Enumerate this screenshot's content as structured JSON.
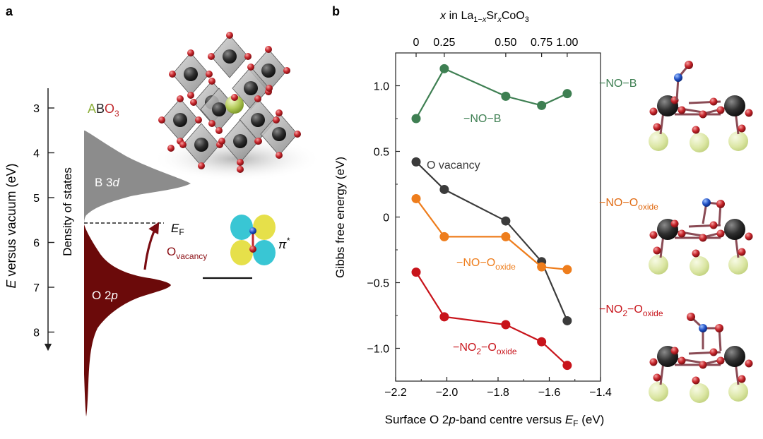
{
  "panel_a": {
    "label": "a",
    "axis_label": "E versus vacuum (eV)",
    "axis_label_italic": "E",
    "axis_label_rest": " versus vacuum (eV)",
    "dos_label": "Density of states",
    "abo3": {
      "a": "A",
      "b": "B",
      "o": "O",
      "sub": "3"
    },
    "b3d": "B 3",
    "b3d_italic": "d",
    "o2p": "O 2",
    "o2p_italic": "p",
    "ef_main": "E",
    "ef_sub": "F",
    "ovac_main": "O",
    "ovac_sub": "vacancy",
    "pi_star": "π",
    "pi_star_sup": "*",
    "ticks": [
      3,
      4,
      5,
      6,
      7,
      8
    ],
    "fermi_level_eV": 5.57,
    "colors": {
      "b3d_band": "#8c8c8c",
      "o2p_band": "#6b0a0a",
      "a_site": "#8db03b",
      "o_site": "#c0282c",
      "arrow": "#7a0c12"
    }
  },
  "panel_b": {
    "label": "b",
    "top_axis_title": {
      "x_italic": "x",
      "in": " in La",
      "sub1": "1−",
      "sub1_x": "x",
      "sr": "Sr",
      "sub2_x": "x",
      "rest": "CoO",
      "sub3": "3"
    },
    "top_ticks": [
      "0",
      "0.25",
      "0.50",
      "0.75",
      "1.00"
    ],
    "ylabel": "Gibbs free energy (eV)",
    "xlabel": {
      "text": "Surface O 2",
      "italic_p": "p",
      "mid": "-band centre versus ",
      "italic_e": "E",
      "sub": "F",
      "tail": " (eV)"
    },
    "xtick_labels": [
      "−2.2",
      "−2.0",
      "−1.8",
      "−1.6",
      "−1.4"
    ],
    "ytick_labels": [
      "−1.0",
      "−0.5",
      "0",
      "0.5",
      "1.0"
    ],
    "series_labels": {
      "nob": "−NO−B",
      "ovac": "O vacancy",
      "nooxide_main": "−NO−O",
      "nooxide_sub": "oxide",
      "no2_main": "−NO",
      "no2_sub2": "2",
      "no2_mid": "−O",
      "no2_sub": "oxide"
    },
    "right_labels": {
      "nob": "−NO−B",
      "nooxide_main": "−NO−O",
      "nooxide_sub": "oxide",
      "no2_main": "−NO",
      "no2_sub2": "2",
      "no2_mid": "−O",
      "no2_sub": "oxide"
    }
  },
  "chart_data": {
    "type": "line",
    "xlabel": "Surface O 2p-band centre versus EF (eV)",
    "ylabel": "Gibbs free energy (eV)",
    "xlim": [
      -2.2,
      -1.4
    ],
    "ylim": [
      -1.25,
      1.25
    ],
    "top_axis": {
      "label": "x in La1−xSrxCoO3",
      "ticks": [
        0,
        0.25,
        0.5,
        0.75,
        1.0
      ],
      "positions": [
        -2.12,
        -2.01,
        -1.77,
        -1.63,
        -1.53
      ]
    },
    "x": [
      -2.12,
      -2.01,
      -1.77,
      -1.63,
      -1.53
    ],
    "series": [
      {
        "name": "−NO−B",
        "color": "#3e7f52",
        "values": [
          0.75,
          1.13,
          0.92,
          0.85,
          0.94
        ]
      },
      {
        "name": "O vacancy",
        "color": "#3b3b3b",
        "values": [
          0.42,
          0.21,
          -0.03,
          -0.34,
          -0.79
        ]
      },
      {
        "name": "−NO−Ooxide",
        "color": "#ee7d1c",
        "values": [
          0.14,
          -0.15,
          -0.15,
          -0.38,
          -0.4
        ]
      },
      {
        "name": "−NO2−Ooxide",
        "color": "#c8141b",
        "values": [
          -0.42,
          -0.76,
          -0.82,
          -0.95,
          -1.13
        ]
      }
    ],
    "grid": false
  }
}
